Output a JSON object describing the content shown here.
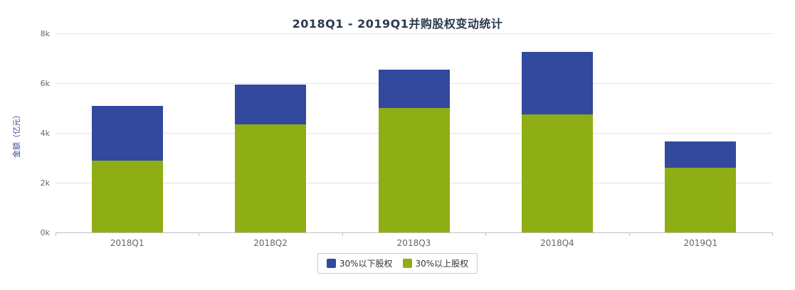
{
  "chart_data": {
    "type": "bar",
    "stacked": true,
    "title": "2018Q1 - 2019Q1并购股权变动统计",
    "xlabel": "",
    "ylabel": "金额（亿元）",
    "categories": [
      "2018Q1",
      "2018Q2",
      "2018Q3",
      "2018Q4",
      "2019Q1"
    ],
    "series": [
      {
        "name": "30%以下股权",
        "color": "#32499d",
        "values": [
          2200,
          1600,
          1550,
          2500,
          1050
        ]
      },
      {
        "name": "30%以上股权",
        "color": "#8fad15",
        "values": [
          2900,
          4350,
          5000,
          4750,
          2600
        ]
      }
    ],
    "totals": [
      5100,
      5950,
      6550,
      7250,
      3650
    ],
    "ylim": [
      0,
      8000
    ],
    "yticks": [
      {
        "value": 0,
        "label": "0k"
      },
      {
        "value": 2000,
        "label": "2k"
      },
      {
        "value": 4000,
        "label": "4k"
      },
      {
        "value": 6000,
        "label": "6k"
      },
      {
        "value": 8000,
        "label": "8k"
      }
    ],
    "grid": true,
    "legend_position": "bottom"
  },
  "colors": {
    "title_text": "#2b3a4d",
    "axis_text": "#666666",
    "axis_line": "#bfbfbf",
    "gridline": "#e4e4e4",
    "series_below_30": "#32499d",
    "series_above_30": "#8fad15"
  }
}
